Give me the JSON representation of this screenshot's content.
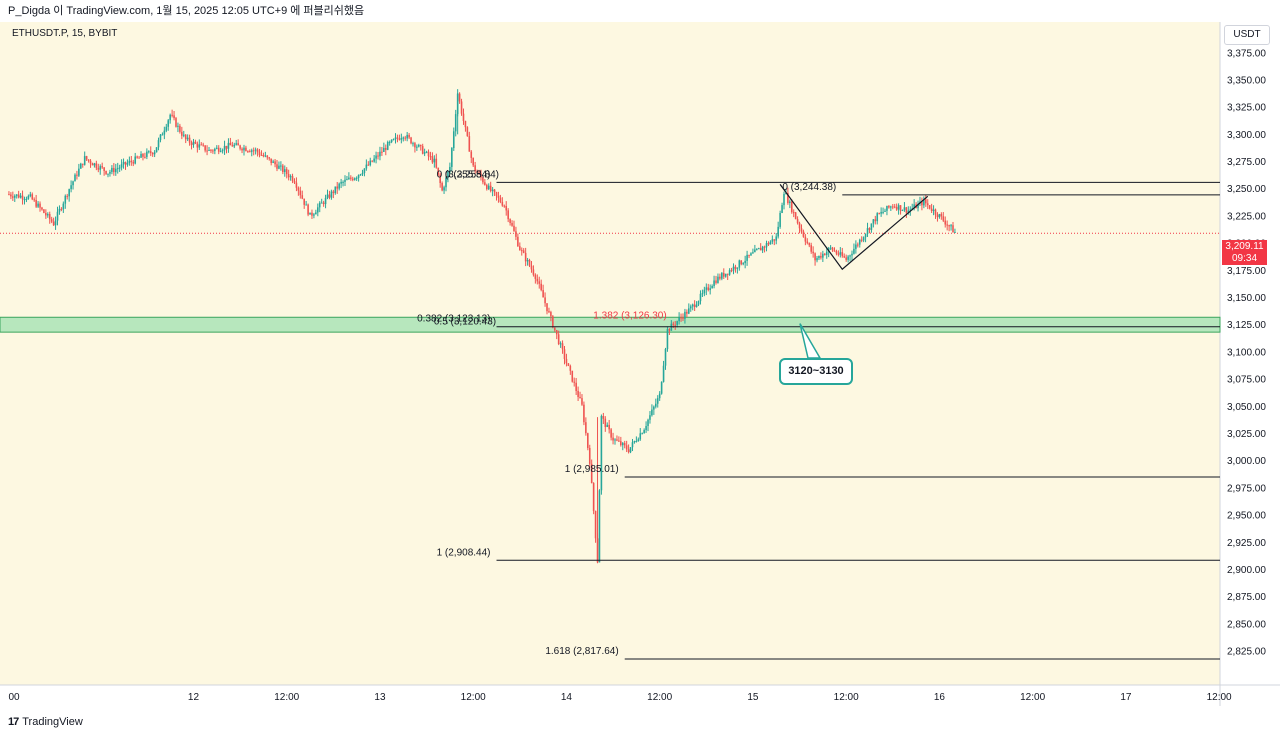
{
  "header": {
    "text": "P_Digda 이 TradingView.com, 1월 15, 2025 12:05 UTC+9 에 퍼블리쉬했음"
  },
  "symbol": "ETHUSDT.P, 15, BYBIT",
  "currency": "USDT",
  "footer": {
    "logo": "17",
    "brand": "TradingView"
  },
  "last_price": {
    "value": "3,209.11",
    "countdown": "09:34"
  },
  "callout": {
    "text": "3120~3130"
  },
  "colors": {
    "background": "#fdf8e1",
    "up": "#26a69a",
    "down": "#ef5350",
    "zone": "#7ed9a0",
    "price_line": "#f23645"
  },
  "chart_data": {
    "type": "candlestick",
    "title": "",
    "y_axis": {
      "ticks": [
        3375,
        3350,
        3325,
        3300,
        3275,
        3250,
        3225,
        3200,
        3175,
        3150,
        3125,
        3100,
        3075,
        3050,
        3025,
        3000,
        2975,
        2950,
        2925,
        2900,
        2875,
        2850,
        2825
      ],
      "tick_labels": [
        "3,375.00",
        "3,350.00",
        "3,325.00",
        "3,300.00",
        "3,275.00",
        "3,250.00",
        "3,225.00",
        "3,200.00",
        "3,175.00",
        "3,150.00",
        "3,125.00",
        "3,100.00",
        "3,075.00",
        "3,050.00",
        "3,025.00",
        "3,000.00",
        "2,975.00",
        "2,950.00",
        "2,925.00",
        "2,900.00",
        "2,875.00",
        "2,850.00",
        "2,825.00"
      ],
      "range": [
        2800,
        3395
      ]
    },
    "x_axis": {
      "labels": [
        "00",
        "12",
        "12:00",
        "13",
        "12:00",
        "14",
        "12:00",
        "15",
        "12:00",
        "16",
        "12:00",
        "17",
        "12:00"
      ],
      "hours": [
        0,
        24,
        36,
        48,
        60,
        72,
        84,
        96,
        108,
        120,
        132,
        144,
        156
      ]
    },
    "price_path": [
      [
        0,
        3245
      ],
      [
        3,
        3242
      ],
      [
        6,
        3218
      ],
      [
        8,
        3250
      ],
      [
        10,
        3278
      ],
      [
        13,
        3265
      ],
      [
        16,
        3275
      ],
      [
        19,
        3285
      ],
      [
        21,
        3318
      ],
      [
        23,
        3295
      ],
      [
        26,
        3285
      ],
      [
        29,
        3290
      ],
      [
        32,
        3285
      ],
      [
        35,
        3270
      ],
      [
        37,
        3258
      ],
      [
        39,
        3225
      ],
      [
        41,
        3240
      ],
      [
        43,
        3255
      ],
      [
        45,
        3262
      ],
      [
        47,
        3275
      ],
      [
        49,
        3290
      ],
      [
        51,
        3300
      ],
      [
        53,
        3288
      ],
      [
        55,
        3275
      ],
      [
        56,
        3248
      ],
      [
        57,
        3270
      ],
      [
        58,
        3338
      ],
      [
        60,
        3270
      ],
      [
        62,
        3250
      ],
      [
        64,
        3235
      ],
      [
        66,
        3195
      ],
      [
        68,
        3170
      ],
      [
        70,
        3130
      ],
      [
        72,
        3090
      ],
      [
        74,
        3050
      ],
      [
        75,
        3000
      ],
      [
        76,
        2908
      ],
      [
        76.5,
        3040
      ],
      [
        78,
        3020
      ],
      [
        80,
        3010
      ],
      [
        82,
        3030
      ],
      [
        84,
        3060
      ],
      [
        85,
        3120
      ],
      [
        88,
        3140
      ],
      [
        91,
        3165
      ],
      [
        94,
        3180
      ],
      [
        97,
        3195
      ],
      [
        99,
        3205
      ],
      [
        100,
        3248
      ],
      [
        102,
        3215
      ],
      [
        104,
        3185
      ],
      [
        106,
        3195
      ],
      [
        108,
        3185
      ],
      [
        110,
        3205
      ],
      [
        112,
        3225
      ],
      [
        114,
        3235
      ],
      [
        116,
        3230
      ],
      [
        118,
        3238
      ],
      [
        120,
        3225
      ],
      [
        122,
        3210
      ]
    ],
    "fib_levels": [
      {
        "label": "0 (3,255.84)",
        "price": 3255.84,
        "x_start": 63,
        "label_pos": "left"
      },
      {
        "label": "0 (3,255.84)",
        "price": 3255.84,
        "x_start": 63,
        "label_pos": "mid"
      },
      {
        "label": "0 (3,244.38)",
        "price": 3244.38,
        "x_start": 107.5,
        "label_pos": "left"
      },
      {
        "label": "0.382 (3,123.13)",
        "price": 3123.13,
        "x_start": 63,
        "label_pos": "left"
      },
      {
        "label": "0.5 (3,120.43)",
        "price": 3120.43,
        "x_start": 63,
        "label_pos": "mid"
      },
      {
        "label": "1.382 (3,126.30)",
        "price": 3126.3,
        "x_start": 63,
        "label_pos": "right",
        "color": "#f23645"
      },
      {
        "label": "1 (2,985.01)",
        "price": 2985.01,
        "x_start": 79.5,
        "label_pos": "left"
      },
      {
        "label": "1 (2,908.44)",
        "price": 2908.44,
        "x_start": 63,
        "label_pos": "left"
      },
      {
        "label": "1.618 (2,817.64)",
        "price": 2817.64,
        "x_start": 79.5,
        "label_pos": "left"
      }
    ],
    "support_zone": {
      "low": 3120,
      "high": 3130,
      "label": "3120~3130"
    },
    "pattern_lines": [
      [
        [
          99.5,
          3254
        ],
        [
          107.5,
          3176
        ],
        [
          118.5,
          3243
        ]
      ]
    ],
    "current_price": 3209.11
  }
}
